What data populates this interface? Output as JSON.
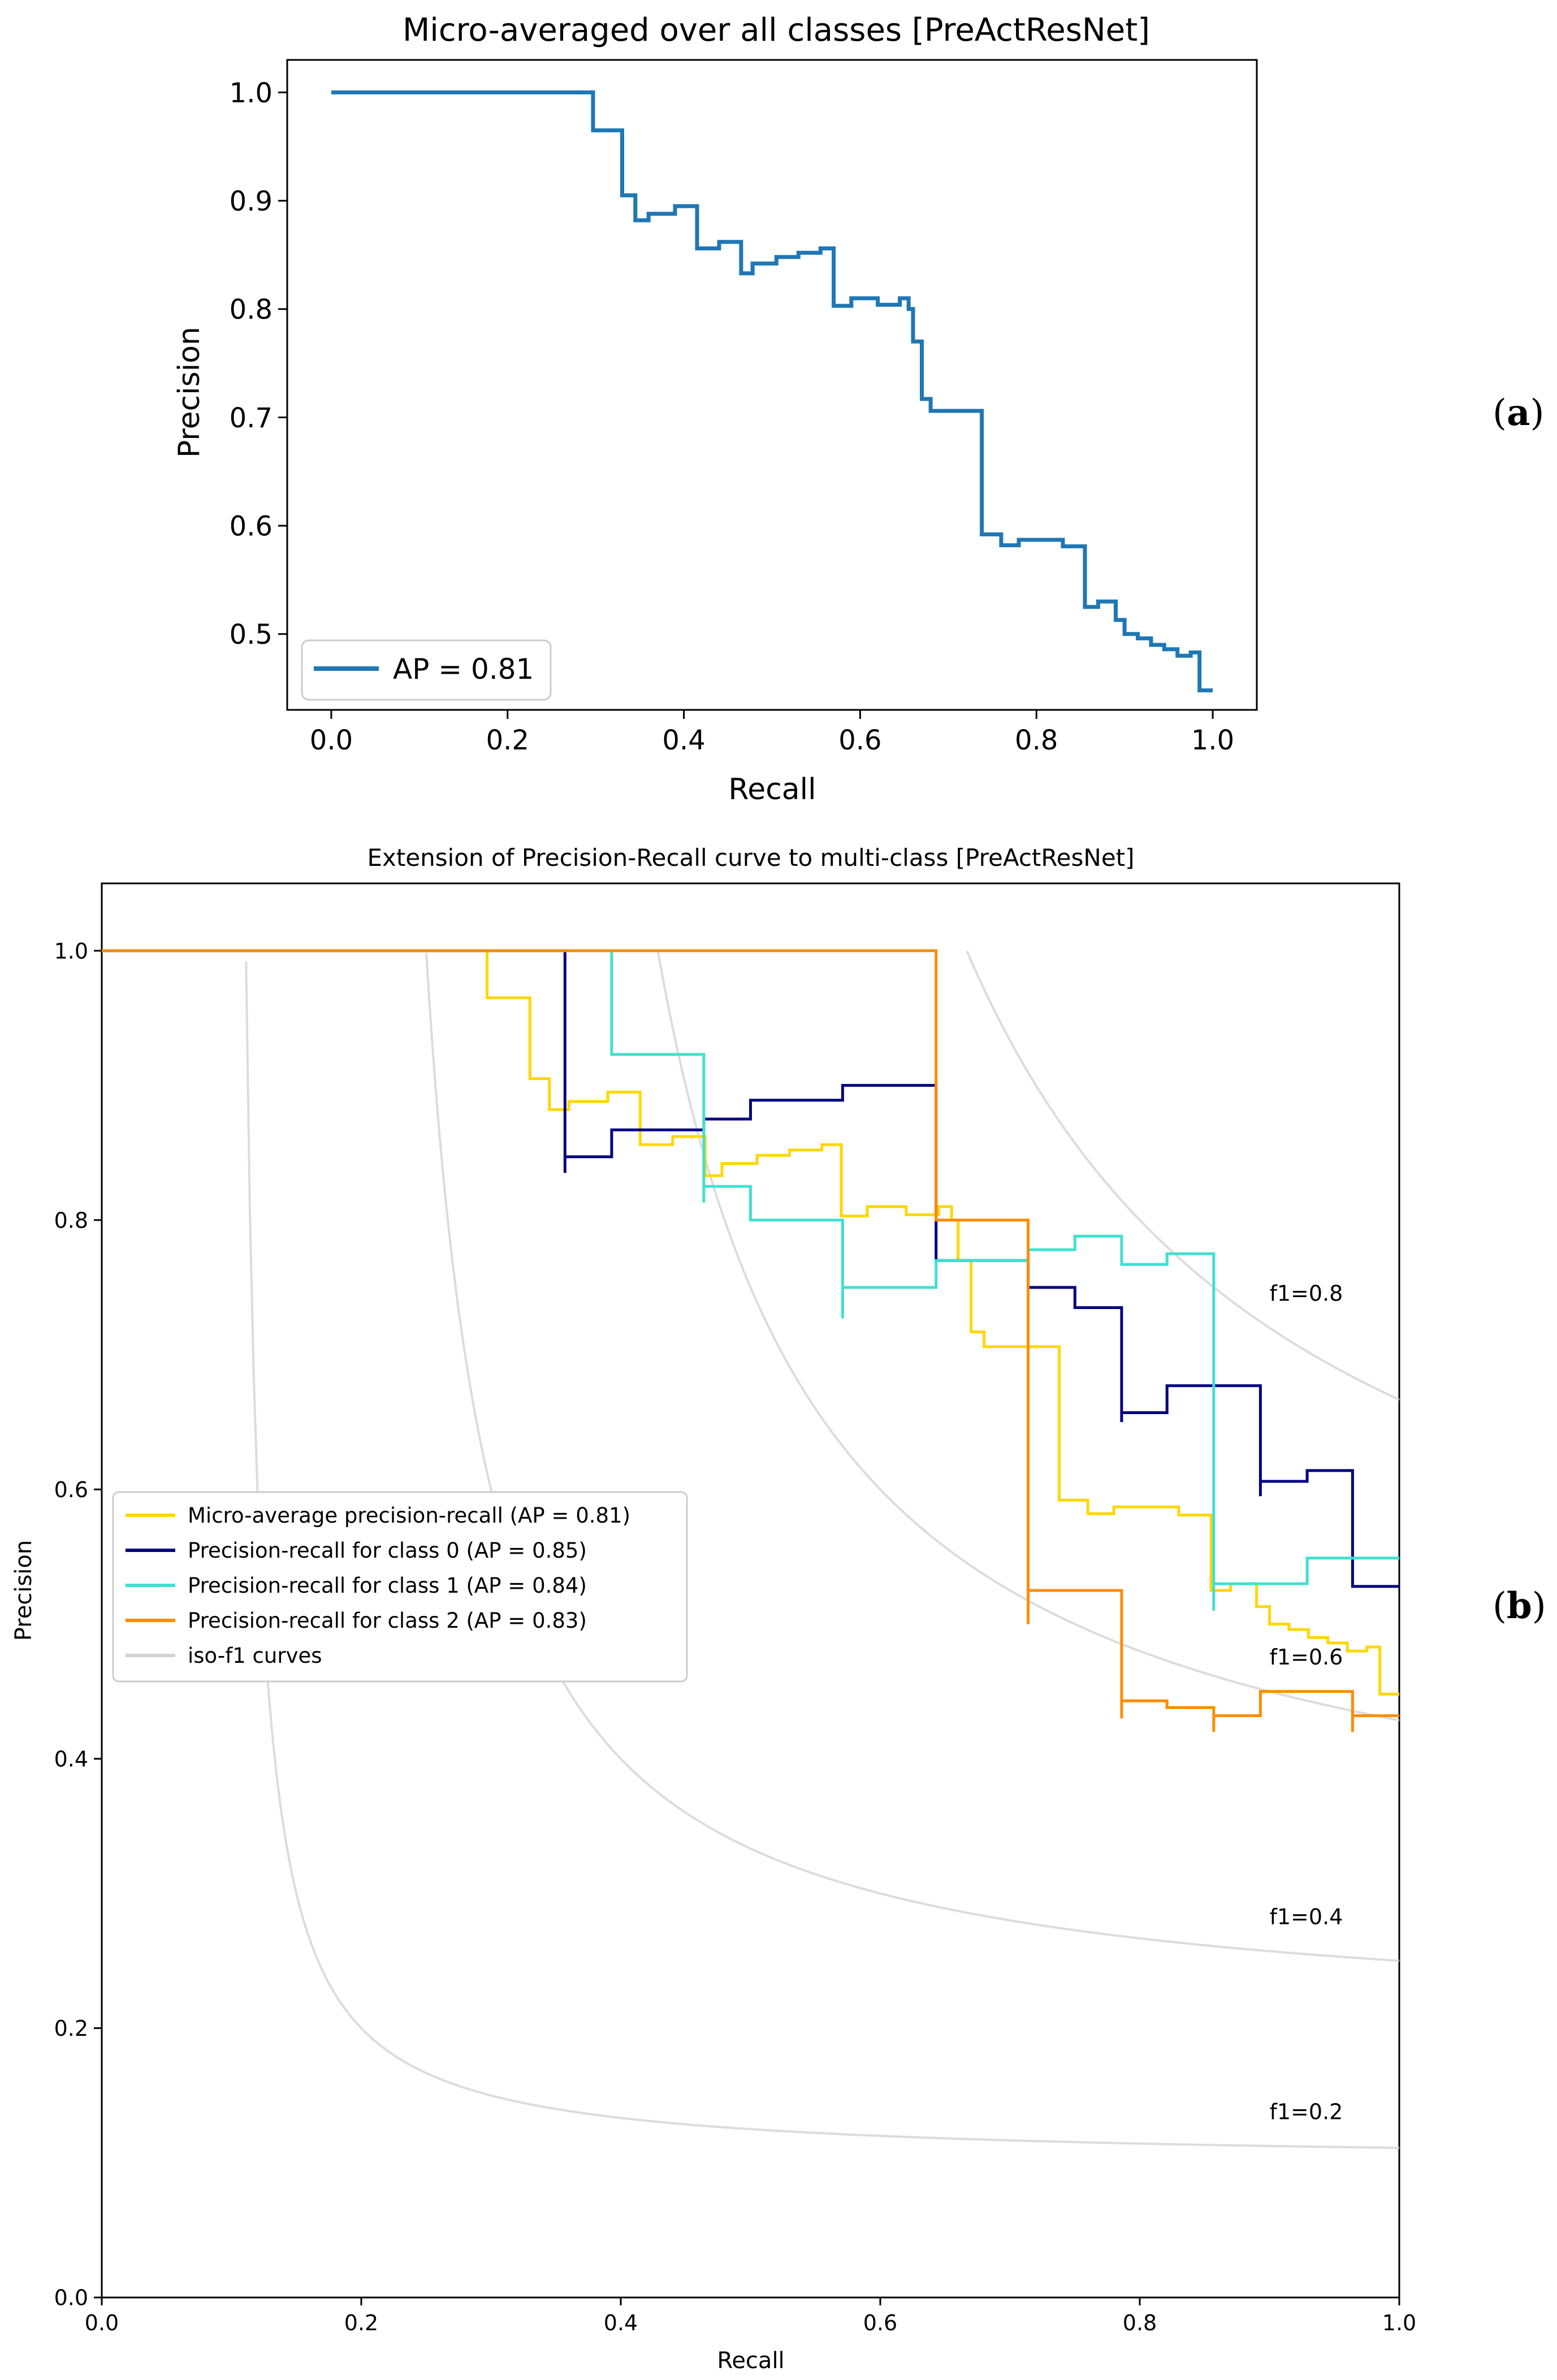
{
  "panels": [
    {
      "label_open": "(",
      "label_letter": "a",
      "label_close": ")"
    },
    {
      "label_open": "(",
      "label_letter": "b",
      "label_close": ")"
    }
  ],
  "chart_data": [
    {
      "type": "line",
      "step": true,
      "title": "Micro-averaged over all classes [PreActResNet]",
      "xlabel": "Recall",
      "ylabel": "Precision",
      "xlim": [
        -0.05,
        1.05
      ],
      "ylim": [
        0.43,
        1.03
      ],
      "xticks": [
        0.0,
        0.2,
        0.4,
        0.6,
        0.8,
        1.0
      ],
      "xtick_labels": [
        "0.0",
        "0.2",
        "0.4",
        "0.6",
        "0.8",
        "1.0"
      ],
      "yticks": [
        0.5,
        0.6,
        0.7,
        0.8,
        0.9,
        1.0
      ],
      "ytick_labels": [
        "0.5",
        "0.6",
        "0.7",
        "0.8",
        "0.9",
        "1.0"
      ],
      "grid": false,
      "legend_position": "lower-left",
      "series": [
        {
          "name": "AP = 0.81",
          "color": "#1f77b4",
          "points": [
            [
              0.0,
              1.0
            ],
            [
              0.297,
              1.0
            ],
            [
              0.297,
              0.965
            ],
            [
              0.33,
              0.965
            ],
            [
              0.33,
              0.905
            ],
            [
              0.345,
              0.905
            ],
            [
              0.345,
              0.882
            ],
            [
              0.36,
              0.882
            ],
            [
              0.36,
              0.888
            ],
            [
              0.39,
              0.888
            ],
            [
              0.39,
              0.895
            ],
            [
              0.415,
              0.895
            ],
            [
              0.415,
              0.856
            ],
            [
              0.44,
              0.856
            ],
            [
              0.44,
              0.862
            ],
            [
              0.465,
              0.862
            ],
            [
              0.465,
              0.833
            ],
            [
              0.478,
              0.833
            ],
            [
              0.478,
              0.842
            ],
            [
              0.505,
              0.842
            ],
            [
              0.505,
              0.848
            ],
            [
              0.53,
              0.848
            ],
            [
              0.53,
              0.852
            ],
            [
              0.555,
              0.852
            ],
            [
              0.555,
              0.856
            ],
            [
              0.57,
              0.856
            ],
            [
              0.57,
              0.803
            ],
            [
              0.59,
              0.803
            ],
            [
              0.59,
              0.81
            ],
            [
              0.62,
              0.81
            ],
            [
              0.62,
              0.804
            ],
            [
              0.645,
              0.804
            ],
            [
              0.645,
              0.81
            ],
            [
              0.655,
              0.81
            ],
            [
              0.655,
              0.8
            ],
            [
              0.66,
              0.8
            ],
            [
              0.66,
              0.77
            ],
            [
              0.67,
              0.77
            ],
            [
              0.67,
              0.717
            ],
            [
              0.68,
              0.717
            ],
            [
              0.68,
              0.706
            ],
            [
              0.71,
              0.706
            ],
            [
              0.71,
              0.706
            ],
            [
              0.738,
              0.706
            ],
            [
              0.738,
              0.592
            ],
            [
              0.76,
              0.592
            ],
            [
              0.76,
              0.582
            ],
            [
              0.78,
              0.582
            ],
            [
              0.78,
              0.587
            ],
            [
              0.83,
              0.587
            ],
            [
              0.83,
              0.581
            ],
            [
              0.855,
              0.581
            ],
            [
              0.855,
              0.525
            ],
            [
              0.87,
              0.525
            ],
            [
              0.87,
              0.53
            ],
            [
              0.89,
              0.53
            ],
            [
              0.89,
              0.513
            ],
            [
              0.9,
              0.513
            ],
            [
              0.9,
              0.5
            ],
            [
              0.915,
              0.5
            ],
            [
              0.915,
              0.496
            ],
            [
              0.93,
              0.496
            ],
            [
              0.93,
              0.49
            ],
            [
              0.945,
              0.49
            ],
            [
              0.945,
              0.486
            ],
            [
              0.96,
              0.486
            ],
            [
              0.96,
              0.48
            ],
            [
              0.975,
              0.48
            ],
            [
              0.975,
              0.483
            ],
            [
              0.985,
              0.483
            ],
            [
              0.985,
              0.448
            ],
            [
              1.0,
              0.448
            ]
          ]
        }
      ]
    },
    {
      "type": "line",
      "step": true,
      "title": "Extension of Precision-Recall curve to multi-class [PreActResNet]",
      "xlabel": "Recall",
      "ylabel": "Precision",
      "xlim": [
        0.0,
        1.0
      ],
      "ylim": [
        0.0,
        1.05
      ],
      "xticks": [
        0.0,
        0.2,
        0.4,
        0.6,
        0.8,
        1.0
      ],
      "xtick_labels": [
        "0.0",
        "0.2",
        "0.4",
        "0.6",
        "0.8",
        "1.0"
      ],
      "yticks": [
        0.0,
        0.2,
        0.4,
        0.6,
        0.8,
        1.0
      ],
      "ytick_labels": [
        "0.0",
        "0.2",
        "0.4",
        "0.6",
        "0.8",
        "1.0"
      ],
      "grid": false,
      "legend_position": "center-left",
      "iso_f1": {
        "values": [
          0.2,
          0.4,
          0.6,
          0.8
        ],
        "labels": [
          "f1=0.2",
          "f1=0.4",
          "f1=0.6",
          "f1=0.8"
        ],
        "color": "#d3d3d3"
      },
      "series": [
        {
          "name": "Micro-average precision-recall (AP = 0.81)",
          "color": "#ffd700",
          "points": [
            [
              0.0,
              1.0
            ],
            [
              0.297,
              1.0
            ],
            [
              0.297,
              0.965
            ],
            [
              0.33,
              0.965
            ],
            [
              0.33,
              0.905
            ],
            [
              0.345,
              0.905
            ],
            [
              0.345,
              0.882
            ],
            [
              0.36,
              0.882
            ],
            [
              0.36,
              0.888
            ],
            [
              0.39,
              0.888
            ],
            [
              0.39,
              0.895
            ],
            [
              0.415,
              0.895
            ],
            [
              0.415,
              0.856
            ],
            [
              0.44,
              0.856
            ],
            [
              0.44,
              0.862
            ],
            [
              0.465,
              0.862
            ],
            [
              0.465,
              0.833
            ],
            [
              0.478,
              0.833
            ],
            [
              0.478,
              0.842
            ],
            [
              0.505,
              0.842
            ],
            [
              0.505,
              0.848
            ],
            [
              0.53,
              0.848
            ],
            [
              0.53,
              0.852
            ],
            [
              0.555,
              0.852
            ],
            [
              0.555,
              0.856
            ],
            [
              0.57,
              0.856
            ],
            [
              0.57,
              0.803
            ],
            [
              0.59,
              0.803
            ],
            [
              0.59,
              0.81
            ],
            [
              0.62,
              0.81
            ],
            [
              0.62,
              0.804
            ],
            [
              0.645,
              0.804
            ],
            [
              0.645,
              0.81
            ],
            [
              0.655,
              0.81
            ],
            [
              0.655,
              0.8
            ],
            [
              0.66,
              0.8
            ],
            [
              0.66,
              0.77
            ],
            [
              0.67,
              0.77
            ],
            [
              0.67,
              0.717
            ],
            [
              0.68,
              0.717
            ],
            [
              0.68,
              0.706
            ],
            [
              0.71,
              0.706
            ],
            [
              0.71,
              0.706
            ],
            [
              0.738,
              0.706
            ],
            [
              0.738,
              0.592
            ],
            [
              0.76,
              0.592
            ],
            [
              0.76,
              0.582
            ],
            [
              0.78,
              0.582
            ],
            [
              0.78,
              0.587
            ],
            [
              0.83,
              0.587
            ],
            [
              0.83,
              0.581
            ],
            [
              0.855,
              0.581
            ],
            [
              0.855,
              0.525
            ],
            [
              0.87,
              0.525
            ],
            [
              0.87,
              0.53
            ],
            [
              0.89,
              0.53
            ],
            [
              0.89,
              0.513
            ],
            [
              0.9,
              0.513
            ],
            [
              0.9,
              0.5
            ],
            [
              0.915,
              0.5
            ],
            [
              0.915,
              0.496
            ],
            [
              0.93,
              0.496
            ],
            [
              0.93,
              0.49
            ],
            [
              0.945,
              0.49
            ],
            [
              0.945,
              0.486
            ],
            [
              0.96,
              0.486
            ],
            [
              0.96,
              0.48
            ],
            [
              0.975,
              0.48
            ],
            [
              0.975,
              0.483
            ],
            [
              0.985,
              0.483
            ],
            [
              0.985,
              0.448
            ],
            [
              1.0,
              0.448
            ]
          ]
        },
        {
          "name": "Precision-recall for class 0 (AP = 0.85)",
          "color": "#000080",
          "points": [
            [
              0.0,
              1.0
            ],
            [
              0.357,
              1.0
            ],
            [
              0.357,
              0.835
            ],
            [
              0.357,
              0.847
            ],
            [
              0.393,
              0.847
            ],
            [
              0.393,
              0.867
            ],
            [
              0.464,
              0.867
            ],
            [
              0.464,
              0.875
            ],
            [
              0.5,
              0.875
            ],
            [
              0.5,
              0.889
            ],
            [
              0.571,
              0.889
            ],
            [
              0.571,
              0.9
            ],
            [
              0.643,
              0.9
            ],
            [
              0.643,
              0.77
            ],
            [
              0.714,
              0.77
            ],
            [
              0.714,
              0.75
            ],
            [
              0.75,
              0.75
            ],
            [
              0.75,
              0.735
            ],
            [
              0.786,
              0.735
            ],
            [
              0.786,
              0.65
            ],
            [
              0.786,
              0.657
            ],
            [
              0.821,
              0.657
            ],
            [
              0.821,
              0.677
            ],
            [
              0.893,
              0.677
            ],
            [
              0.893,
              0.595
            ],
            [
              0.893,
              0.606
            ],
            [
              0.929,
              0.606
            ],
            [
              0.929,
              0.614
            ],
            [
              0.964,
              0.614
            ],
            [
              0.964,
              0.528
            ],
            [
              1.0,
              0.528
            ]
          ]
        },
        {
          "name": "Precision-recall for class 1 (AP = 0.84)",
          "color": "#40e0d0",
          "points": [
            [
              0.0,
              1.0
            ],
            [
              0.393,
              1.0
            ],
            [
              0.393,
              0.923
            ],
            [
              0.464,
              0.923
            ],
            [
              0.464,
              0.813
            ],
            [
              0.464,
              0.825
            ],
            [
              0.5,
              0.825
            ],
            [
              0.5,
              0.8
            ],
            [
              0.571,
              0.8
            ],
            [
              0.571,
              0.727
            ],
            [
              0.571,
              0.75
            ],
            [
              0.643,
              0.75
            ],
            [
              0.643,
              0.77
            ],
            [
              0.714,
              0.77
            ],
            [
              0.714,
              0.778
            ],
            [
              0.75,
              0.778
            ],
            [
              0.75,
              0.788
            ],
            [
              0.786,
              0.788
            ],
            [
              0.786,
              0.767
            ],
            [
              0.821,
              0.767
            ],
            [
              0.821,
              0.775
            ],
            [
              0.857,
              0.775
            ],
            [
              0.857,
              0.51
            ],
            [
              0.857,
              0.53
            ],
            [
              0.929,
              0.53
            ],
            [
              0.929,
              0.549
            ],
            [
              1.0,
              0.549
            ]
          ]
        },
        {
          "name": "Precision-recall for class 2 (AP = 0.83)",
          "color": "#ff8c00",
          "points": [
            [
              0.0,
              1.0
            ],
            [
              0.643,
              1.0
            ],
            [
              0.643,
              0.8
            ],
            [
              0.714,
              0.8
            ],
            [
              0.714,
              0.5
            ],
            [
              0.714,
              0.525
            ],
            [
              0.786,
              0.525
            ],
            [
              0.786,
              0.43
            ],
            [
              0.786,
              0.443
            ],
            [
              0.821,
              0.443
            ],
            [
              0.821,
              0.438
            ],
            [
              0.857,
              0.438
            ],
            [
              0.857,
              0.42
            ],
            [
              0.857,
              0.432
            ],
            [
              0.893,
              0.432
            ],
            [
              0.893,
              0.45
            ],
            [
              0.964,
              0.45
            ],
            [
              0.964,
              0.42
            ],
            [
              0.964,
              0.432
            ],
            [
              1.0,
              0.432
            ]
          ]
        }
      ],
      "legend_extra": {
        "name": "iso-f1 curves",
        "color": "#d3d3d3"
      }
    }
  ]
}
